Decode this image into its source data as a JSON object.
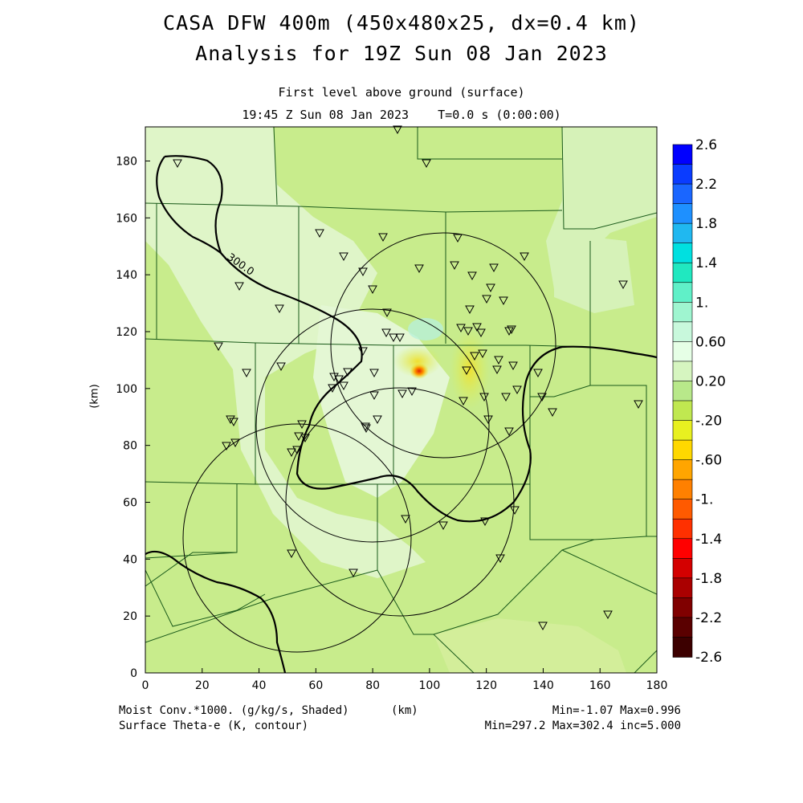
{
  "header": {
    "title_line1": "CASA DFW 400m (450x480x25, dx=0.4 km)",
    "title_line2": "Analysis for 19Z Sun 08 Jan 2023",
    "level": "First level above ground (surface)",
    "time": "19:45 Z Sun 08 Jan 2023    T=0.0 s (0:00:00)"
  },
  "axes": {
    "x_ticks": [
      "0",
      "20",
      "40",
      "60",
      "80",
      "100",
      "120",
      "140",
      "160",
      "180"
    ],
    "y_ticks": [
      "0",
      "20",
      "40",
      "60",
      "80",
      "100",
      "120",
      "140",
      "160",
      "180"
    ],
    "x_unit": "(km)",
    "y_unit": "(km)",
    "xlim": [
      0,
      180
    ],
    "ylim": [
      0,
      192
    ]
  },
  "colorbar": {
    "labels": [
      "2.6",
      "2.2",
      "1.8",
      "1.4",
      "1.",
      "0.60",
      "0.20",
      "-.20",
      "-.60",
      "-1.",
      "-1.4",
      "-1.8",
      "-2.2",
      "-2.6"
    ],
    "colors": [
      "#0000ff",
      "#0a3cff",
      "#1a66ff",
      "#1e90ff",
      "#20b8f0",
      "#00e0e0",
      "#20e8c0",
      "#60f0c8",
      "#9ff5d0",
      "#c8f8dc",
      "#e6ffe6",
      "#d6f5c0",
      "#b8e88a",
      "#c0e850",
      "#e8f020",
      "#ffd800",
      "#ffa500",
      "#ff8000",
      "#ff5a00",
      "#ff3000",
      "#ff0000",
      "#d40000",
      "#aa0000",
      "#800000",
      "#5a0000",
      "#3c0000"
    ]
  },
  "contour": {
    "label": "300.0"
  },
  "footer": {
    "left1": "Moist Conv.*1000. (g/kg/s, Shaded)",
    "unit": "(km)",
    "left2": "Surface Theta-e (K, contour)",
    "right1": "Min=-1.07 Max=0.996",
    "right2": "Min=297.2 Max=302.4 inc=5.000"
  },
  "colors": {
    "background_field": "#c8ec8c",
    "light_region": "#dff5c8",
    "convergence_max": "#e02000"
  }
}
